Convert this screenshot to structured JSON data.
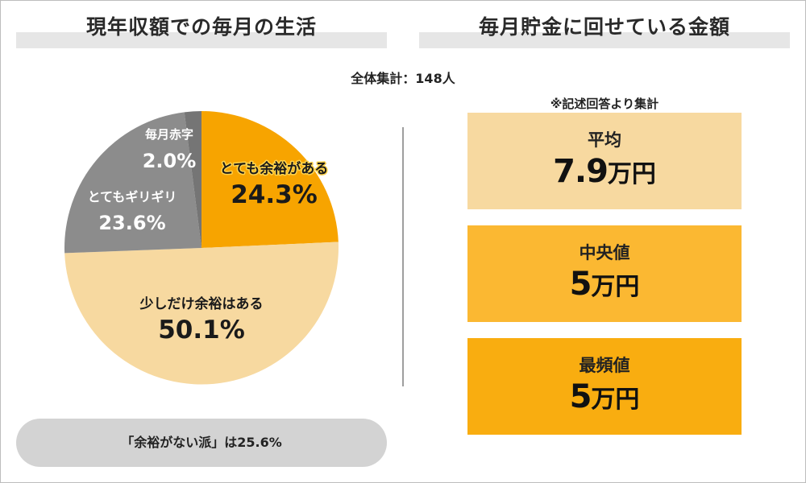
{
  "left_title": "現年収額での毎月の生活",
  "right_title": "毎月貯金に回せている金額",
  "total_label": "全体集計：148人",
  "note": "※記述回答より集計",
  "colors": {
    "orange": "#f7a400",
    "light_orange": "#f7d9a0",
    "gray": "#8c8c8c",
    "dark_gray": "#757575",
    "box_light": "#f7d9a0",
    "box_mid": "#fbb832",
    "box_strong": "#f9ad10",
    "pill": "#d3d3d3"
  },
  "chart_data": {
    "type": "pie",
    "title": "現年収額での毎月の生活",
    "start": "12 o'clock",
    "direction": "clockwise",
    "slices": [
      {
        "label": "とても余裕がある",
        "value": 24.3,
        "value_text": "24.3%",
        "color": "#f7a400",
        "text_color": "#1a1a1a",
        "outline": true
      },
      {
        "label": "少しだけ余裕はある",
        "value": 50.1,
        "value_text": "50.1%",
        "color": "#f7d9a0",
        "text_color": "#1a1a1a",
        "outline": false
      },
      {
        "label": "とてもギリギリ",
        "value": 23.6,
        "value_text": "23.6%",
        "color": "#8c8c8c",
        "text_color": "#ffffff",
        "outline": false
      },
      {
        "label": "毎月赤字",
        "value": 2.0,
        "value_text": "2.0%",
        "color": "#757575",
        "text_color": "#ffffff",
        "outline": false
      }
    ]
  },
  "stats": [
    {
      "label": "平均",
      "value": "7.9",
      "unit": "万円"
    },
    {
      "label": "中央値",
      "value": "5",
      "unit": "万円"
    },
    {
      "label": "最頻値",
      "value": "5",
      "unit": "万円"
    }
  ],
  "summary": "「余裕がない派」は25.6%"
}
